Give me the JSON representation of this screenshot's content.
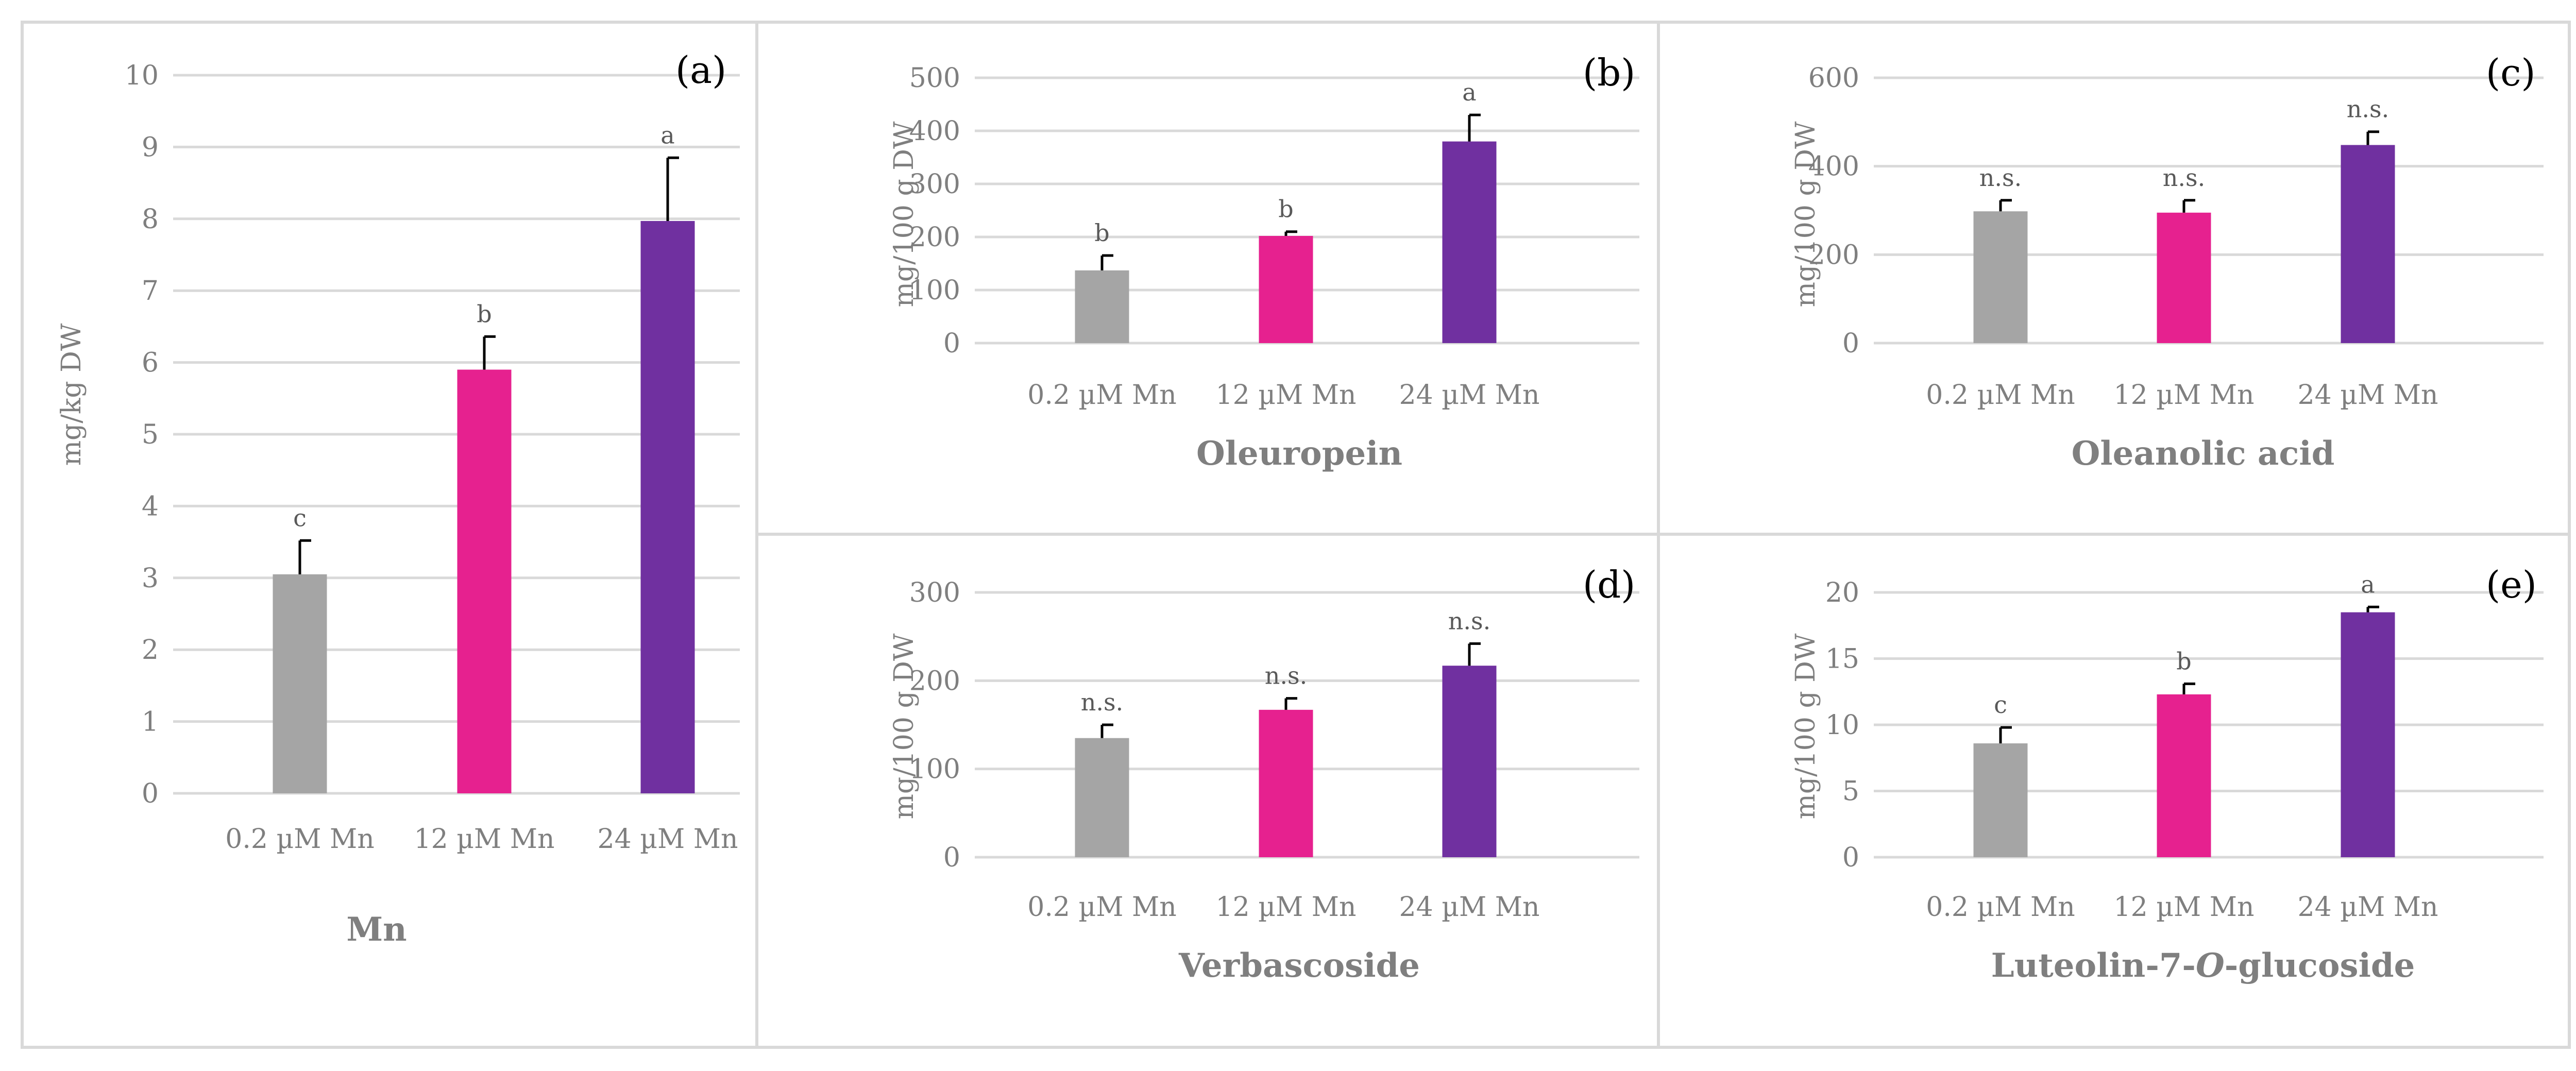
{
  "chart_data": [
    {
      "id": "a",
      "type": "bar",
      "panel_label": "(a)",
      "title": "Mn",
      "ylabel": "mg/kg DW",
      "ylim": [
        0,
        10
      ],
      "yticks": [
        "0",
        "1",
        "2",
        "3",
        "4",
        "5",
        "6",
        "7",
        "8",
        "9",
        "10"
      ],
      "categories": [
        "0.2 µM Mn",
        "12 µM Mn",
        "24 µM Mn"
      ],
      "values": [
        3.05,
        5.9,
        7.97
      ],
      "errors": [
        0.47,
        0.46,
        0.88
      ],
      "significance": [
        "c",
        "b",
        "a"
      ],
      "colors": [
        "#a5a5a5",
        "#e6218f",
        "#7030a0"
      ]
    },
    {
      "id": "b",
      "type": "bar",
      "panel_label": "(b)",
      "title": "Oleuropein",
      "ylabel": "mg/100 g DW",
      "ylim": [
        0,
        500
      ],
      "yticks": [
        "0",
        "100",
        "200",
        "300",
        "400",
        "500"
      ],
      "categories": [
        "0.2 µM Mn",
        "12 µM Mn",
        "24 µM Mn"
      ],
      "values": [
        137,
        202,
        380
      ],
      "errors": [
        28,
        8,
        50
      ],
      "significance": [
        "b",
        "b",
        "a"
      ],
      "colors": [
        "#a5a5a5",
        "#e6218f",
        "#7030a0"
      ]
    },
    {
      "id": "c",
      "type": "bar",
      "panel_label": "(c)",
      "title": "Oleanolic acid",
      "ylabel": "mg/100 g DW",
      "ylim": [
        0,
        600
      ],
      "yticks": [
        "0",
        "200",
        "400",
        "600"
      ],
      "categories": [
        "0.2 µM Mn",
        "12 µM Mn",
        "24 µM Mn"
      ],
      "values": [
        298,
        295,
        448
      ],
      "errors": [
        25,
        28,
        30
      ],
      "significance": [
        "n.s.",
        "n.s.",
        "n.s."
      ],
      "colors": [
        "#a5a5a5",
        "#e6218f",
        "#7030a0"
      ]
    },
    {
      "id": "d",
      "type": "bar",
      "panel_label": "(d)",
      "title": "Verbascoside",
      "ylabel": "mg/100 g DW",
      "ylim": [
        0,
        300
      ],
      "yticks": [
        "0",
        "100",
        "200",
        "300"
      ],
      "categories": [
        "0.2 µM Mn",
        "12 µM Mn",
        "24 µM Mn"
      ],
      "values": [
        135,
        167,
        217
      ],
      "errors": [
        15,
        13,
        25
      ],
      "significance": [
        "n.s.",
        "n.s.",
        "n.s."
      ],
      "colors": [
        "#a5a5a5",
        "#e6218f",
        "#7030a0"
      ]
    },
    {
      "id": "e",
      "type": "bar",
      "panel_label": "(e)",
      "title": "Luteolin-7-O-glucoside",
      "ylabel": "mg/100 g DW",
      "ylim": [
        0,
        20
      ],
      "yticks": [
        "0",
        "5",
        "10",
        "15",
        "20"
      ],
      "categories": [
        "0.2 µM Mn",
        "12 µM Mn",
        "24 µM Mn"
      ],
      "values": [
        8.6,
        12.3,
        18.5
      ],
      "errors": [
        1.2,
        0.8,
        0.4
      ],
      "significance": [
        "c",
        "b",
        "a"
      ],
      "colors": [
        "#a5a5a5",
        "#e6218f",
        "#7030a0"
      ]
    }
  ]
}
